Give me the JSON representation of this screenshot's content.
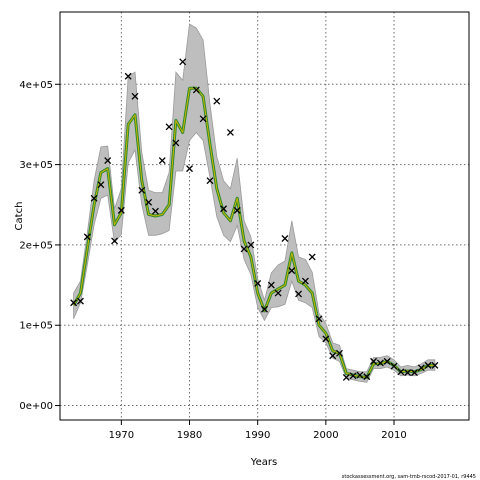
{
  "chart_data": {
    "type": "line",
    "xlabel": "Years",
    "ylabel": "Catch",
    "footnote": "stockassessment.org, sam-tmb-rscod-2017-01, r9445",
    "xlim": [
      1961,
      2021
    ],
    "ylim": [
      -18000,
      490000
    ],
    "x_ticks": [
      1970,
      1980,
      1990,
      2000,
      2010
    ],
    "y_ticks": [
      {
        "value": 0,
        "label": "0e+00"
      },
      {
        "value": 100000,
        "label": "1e+05"
      },
      {
        "value": 200000,
        "label": "2e+05"
      },
      {
        "value": 300000,
        "label": "3e+05"
      },
      {
        "value": 400000,
        "label": "4e+05"
      }
    ],
    "grid": true,
    "colors": {
      "band": "#bebebe",
      "band_edge": "#9a9a9a",
      "estimate": "#2e8b2e",
      "estimate_highlight": "#c8b400",
      "observed": "#000000",
      "grid": "#6e6e6e"
    },
    "estimate": {
      "x": [
        1963,
        1964,
        1965,
        1966,
        1967,
        1968,
        1969,
        1970,
        1971,
        1972,
        1973,
        1974,
        1975,
        1976,
        1977,
        1978,
        1979,
        1980,
        1981,
        1982,
        1983,
        1984,
        1985,
        1986,
        1987,
        1988,
        1989,
        1990,
        1991,
        1992,
        1993,
        1994,
        1995,
        1996,
        1997,
        1998,
        1999,
        2000,
        2001,
        2002,
        2003,
        2004,
        2005,
        2006,
        2007,
        2008,
        2009,
        2010,
        2011,
        2012,
        2013,
        2014,
        2015,
        2016
      ],
      "y": [
        125000,
        140000,
        195000,
        250000,
        290000,
        295000,
        225000,
        240000,
        350000,
        362000,
        280000,
        238000,
        236000,
        238000,
        250000,
        355000,
        340000,
        395000,
        395000,
        385000,
        325000,
        270000,
        240000,
        230000,
        258000,
        205000,
        185000,
        140000,
        118000,
        140000,
        145000,
        150000,
        190000,
        155000,
        150000,
        140000,
        100000,
        90000,
        68000,
        65000,
        40000,
        38000,
        36000,
        35000,
        52000,
        52000,
        55000,
        50000,
        42000,
        43000,
        42000,
        45000,
        50000,
        50000
      ],
      "lower": [
        108000,
        128000,
        175000,
        225000,
        258000,
        262000,
        203000,
        213000,
        302000,
        318000,
        250000,
        212000,
        212000,
        214000,
        218000,
        292000,
        292000,
        330000,
        340000,
        330000,
        284000,
        235000,
        212000,
        204000,
        224000,
        182000,
        163000,
        122000,
        106000,
        122000,
        123000,
        126000,
        155000,
        131000,
        128000,
        122000,
        86000,
        78000,
        59000,
        55000,
        34000,
        32000,
        30000,
        29000,
        46000,
        46000,
        48000,
        44000,
        37000,
        38000,
        37000,
        40000,
        44000,
        44000
      ],
      "upper": [
        140000,
        155000,
        215000,
        280000,
        322000,
        323000,
        245000,
        270000,
        410000,
        415000,
        315000,
        268000,
        265000,
        265000,
        290000,
        415000,
        405000,
        475000,
        470000,
        455000,
        375000,
        310000,
        280000,
        270000,
        308000,
        230000,
        210000,
        158000,
        131000,
        165000,
        175000,
        180000,
        230000,
        185000,
        182000,
        166000,
        115000,
        102000,
        78000,
        75000,
        46000,
        44000,
        42000,
        42000,
        60000,
        60000,
        62000,
        57000,
        48000,
        50000,
        48000,
        52000,
        57000,
        57000
      ]
    },
    "observed": {
      "x": [
        1963,
        1964,
        1965,
        1966,
        1967,
        1968,
        1969,
        1970,
        1971,
        1972,
        1973,
        1974,
        1975,
        1976,
        1977,
        1978,
        1979,
        1980,
        1981,
        1982,
        1983,
        1984,
        1985,
        1986,
        1987,
        1988,
        1989,
        1990,
        1991,
        1992,
        1993,
        1994,
        1995,
        1996,
        1997,
        1998,
        1999,
        2000,
        2001,
        2002,
        2003,
        2004,
        2005,
        2006,
        2007,
        2008,
        2009,
        2010,
        2011,
        2012,
        2013,
        2014,
        2015,
        2016
      ],
      "y": [
        128000,
        130000,
        210000,
        258000,
        275000,
        305000,
        205000,
        243000,
        410000,
        385000,
        268000,
        253000,
        242000,
        305000,
        347000,
        327000,
        428000,
        295000,
        393000,
        357000,
        280000,
        379000,
        245000,
        340000,
        243000,
        195000,
        200000,
        152000,
        120000,
        150000,
        140000,
        208000,
        168000,
        139000,
        155000,
        185000,
        108000,
        83000,
        62000,
        65000,
        35000,
        37000,
        38000,
        36000,
        55000,
        53000,
        55000,
        49000,
        42000,
        41000,
        41000,
        47000,
        50000,
        50000
      ]
    }
  }
}
